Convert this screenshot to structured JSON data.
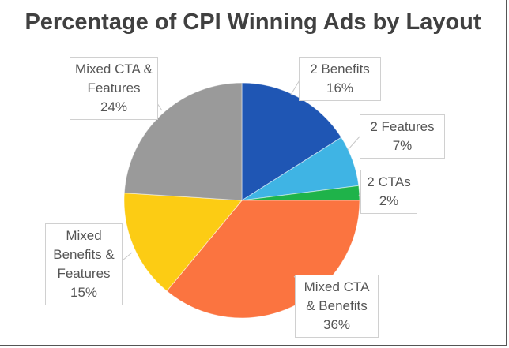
{
  "chart_data": {
    "type": "pie",
    "title": "Percentage of CPI Winning Ads by Layout",
    "start": "top, clockwise",
    "slices": [
      {
        "label": "2 Benefits",
        "value": 16,
        "text": "16%",
        "color": "#1f56b4"
      },
      {
        "label": "2 Features",
        "value": 7,
        "text": "7%",
        "color": "#3fb4e4"
      },
      {
        "label": "2 CTAs",
        "value": 2,
        "text": "2%",
        "color": "#1fb34a"
      },
      {
        "label": "Mixed CTA & Benefits",
        "value": 36,
        "text": "36%",
        "color": "#fb7440"
      },
      {
        "label": "Mixed Benefits & Features",
        "value": 15,
        "text": "15%",
        "color": "#fccc14"
      },
      {
        "label": "Mixed CTA & Features",
        "value": 24,
        "text": "24%",
        "color": "#9a9a9a"
      }
    ]
  }
}
